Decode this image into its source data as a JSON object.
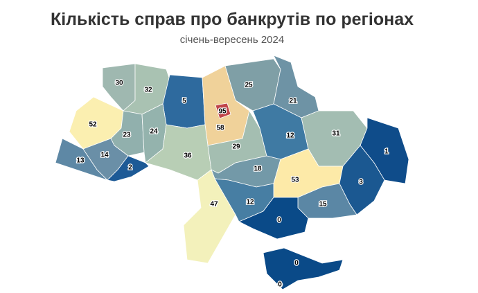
{
  "title": "Кількість справ про банкрутів по регіонах",
  "subtitle": "січень-вересень 2024",
  "regions": [
    {
      "value": 30,
      "color": "#9fb8b0"
    },
    {
      "value": 32,
      "color": "#a9c2b2"
    },
    {
      "value": 5,
      "color": "#2e6a9e"
    },
    {
      "value": 58,
      "color": "#f0d29a"
    },
    {
      "value": 95,
      "color": "#c0454a"
    },
    {
      "value": 25,
      "color": "#7f9fa6"
    },
    {
      "value": 21,
      "color": "#6e93a5"
    },
    {
      "value": 52,
      "color": "#fbefb0"
    },
    {
      "value": 23,
      "color": "#91b0ad"
    },
    {
      "value": 24,
      "color": "#94b3ad"
    },
    {
      "value": 13,
      "color": "#5e88a5"
    },
    {
      "value": 14,
      "color": "#6a8fa7"
    },
    {
      "value": 2,
      "color": "#1d5a96"
    },
    {
      "value": 36,
      "color": "#b8ceb5"
    },
    {
      "value": 29,
      "color": "#a4beb1"
    },
    {
      "value": 12,
      "color": "#3f7aa3"
    },
    {
      "value": 31,
      "color": "#a3bdb2"
    },
    {
      "value": 1,
      "color": "#0f4c8a"
    },
    {
      "value": 18,
      "color": "#7399a8"
    },
    {
      "value": 53,
      "color": "#fdeaa8"
    },
    {
      "value": 3,
      "color": "#1b5891"
    },
    {
      "value": 47,
      "color": "#f3f1bb"
    },
    {
      "value": 12,
      "color": "#477ea3"
    },
    {
      "value": 15,
      "color": "#5b87a5"
    },
    {
      "value": 0,
      "color": "#0a4a88"
    },
    {
      "value": 0,
      "color": "#0a4a88"
    },
    {
      "value": 0,
      "color": "#0a4a88"
    }
  ]
}
